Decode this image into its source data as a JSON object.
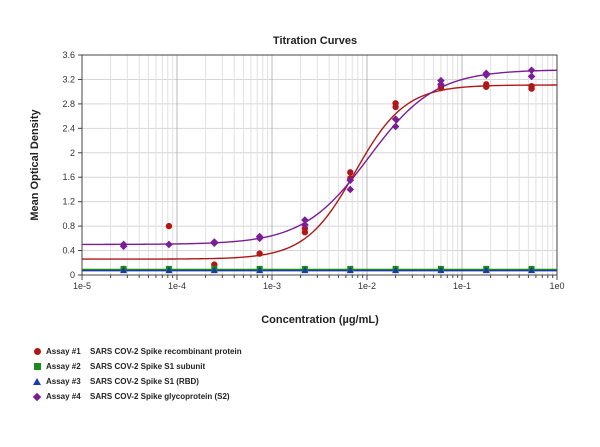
{
  "chart_data": {
    "type": "scatter",
    "title": "Titration Curves",
    "xlabel": "Concentration (µg/mL)",
    "ylabel": "Mean Optical Density",
    "xscale": "log",
    "xlim": [
      1e-05,
      1
    ],
    "ylim": [
      0,
      3.6
    ],
    "x_tick_labels": [
      "1e-5",
      "1e-4",
      "1e-3",
      "1e-2",
      "1e-1",
      "1e0"
    ],
    "x_tick_values": [
      1e-05,
      0.0001,
      0.001,
      0.01,
      0.1,
      1
    ],
    "y_ticks": [
      0,
      0.4,
      0.8,
      1.2,
      1.6,
      2,
      2.4,
      2.8,
      3.2,
      3.6
    ],
    "y_tick_labels": [
      "0",
      "0.4",
      "0.8",
      "1.2",
      "1.6",
      "2",
      "2.4",
      "2.8",
      "3.2",
      "3.6"
    ],
    "grid": true,
    "legend_position": "bottom-left",
    "series": [
      {
        "name": "SARS COV-2 Spike recombinant protein",
        "assay": "Assay #1",
        "color": "#b01818",
        "marker": "circle",
        "points": [
          {
            "x": 2.74e-05,
            "y": 0.1
          },
          {
            "x": 8.23e-05,
            "y": 0.8
          },
          {
            "x": 0.000247,
            "y": 0.17
          },
          {
            "x": 0.000741,
            "y": 0.35
          },
          {
            "x": 0.00222,
            "y": 0.7
          },
          {
            "x": 0.00222,
            "y": 0.76
          },
          {
            "x": 0.00667,
            "y": 1.58
          },
          {
            "x": 0.00667,
            "y": 1.68
          },
          {
            "x": 0.02,
            "y": 2.75
          },
          {
            "x": 0.02,
            "y": 2.81
          },
          {
            "x": 0.06,
            "y": 3.06
          },
          {
            "x": 0.06,
            "y": 3.1
          },
          {
            "x": 0.18,
            "y": 3.08
          },
          {
            "x": 0.18,
            "y": 3.12
          },
          {
            "x": 0.54,
            "y": 3.05
          },
          {
            "x": 0.54,
            "y": 3.09
          }
        ],
        "fit": {
          "bottom": 0.26,
          "top": 3.11,
          "ec50": 0.0075,
          "hill": 1.65
        }
      },
      {
        "name": "SARS COV-2 Spike S1 subunit",
        "assay": "Assay #2",
        "color": "#1a8a1a",
        "marker": "square",
        "points": [
          {
            "x": 2.74e-05,
            "y": 0.1
          },
          {
            "x": 8.23e-05,
            "y": 0.1
          },
          {
            "x": 0.000247,
            "y": 0.1
          },
          {
            "x": 0.000741,
            "y": 0.1
          },
          {
            "x": 0.00222,
            "y": 0.1
          },
          {
            "x": 0.00667,
            "y": 0.1
          },
          {
            "x": 0.02,
            "y": 0.1
          },
          {
            "x": 0.06,
            "y": 0.1
          },
          {
            "x": 0.18,
            "y": 0.1
          },
          {
            "x": 0.54,
            "y": 0.1
          }
        ],
        "fit": {
          "bottom": 0.09,
          "top": 0.09,
          "ec50": 0.01,
          "hill": 1
        }
      },
      {
        "name": "SARS COV-2 Spike S1 (RBD)",
        "assay": "Assay #3",
        "color": "#1a3aa8",
        "marker": "triangle",
        "points": [
          {
            "x": 2.74e-05,
            "y": 0.08
          },
          {
            "x": 8.23e-05,
            "y": 0.08
          },
          {
            "x": 0.000247,
            "y": 0.08
          },
          {
            "x": 0.000741,
            "y": 0.08
          },
          {
            "x": 0.00222,
            "y": 0.08
          },
          {
            "x": 0.00667,
            "y": 0.08
          },
          {
            "x": 0.02,
            "y": 0.08
          },
          {
            "x": 0.06,
            "y": 0.08
          },
          {
            "x": 0.18,
            "y": 0.08
          },
          {
            "x": 0.54,
            "y": 0.08
          }
        ],
        "fit": {
          "bottom": 0.07,
          "top": 0.07,
          "ec50": 0.01,
          "hill": 1
        }
      },
      {
        "name": "SARS COV-2 Spike glycoprotein (S2)",
        "assay": "Assay #4",
        "color": "#7a1e96",
        "marker": "diamond",
        "points": [
          {
            "x": 2.74e-05,
            "y": 0.47
          },
          {
            "x": 2.74e-05,
            "y": 0.5
          },
          {
            "x": 8.23e-05,
            "y": 0.5
          },
          {
            "x": 0.000247,
            "y": 0.52
          },
          {
            "x": 0.000247,
            "y": 0.54
          },
          {
            "x": 0.000741,
            "y": 0.6
          },
          {
            "x": 0.000741,
            "y": 0.63
          },
          {
            "x": 0.00222,
            "y": 0.82
          },
          {
            "x": 0.00222,
            "y": 0.9
          },
          {
            "x": 0.00667,
            "y": 1.4
          },
          {
            "x": 0.00667,
            "y": 1.55
          },
          {
            "x": 0.02,
            "y": 2.43
          },
          {
            "x": 0.02,
            "y": 2.55
          },
          {
            "x": 0.06,
            "y": 3.12
          },
          {
            "x": 0.06,
            "y": 3.18
          },
          {
            "x": 0.18,
            "y": 3.27
          },
          {
            "x": 0.18,
            "y": 3.3
          },
          {
            "x": 0.54,
            "y": 3.25
          },
          {
            "x": 0.54,
            "y": 3.35
          }
        ],
        "fit": {
          "bottom": 0.5,
          "top": 3.36,
          "ec50": 0.0105,
          "hill": 1.25
        }
      }
    ]
  }
}
